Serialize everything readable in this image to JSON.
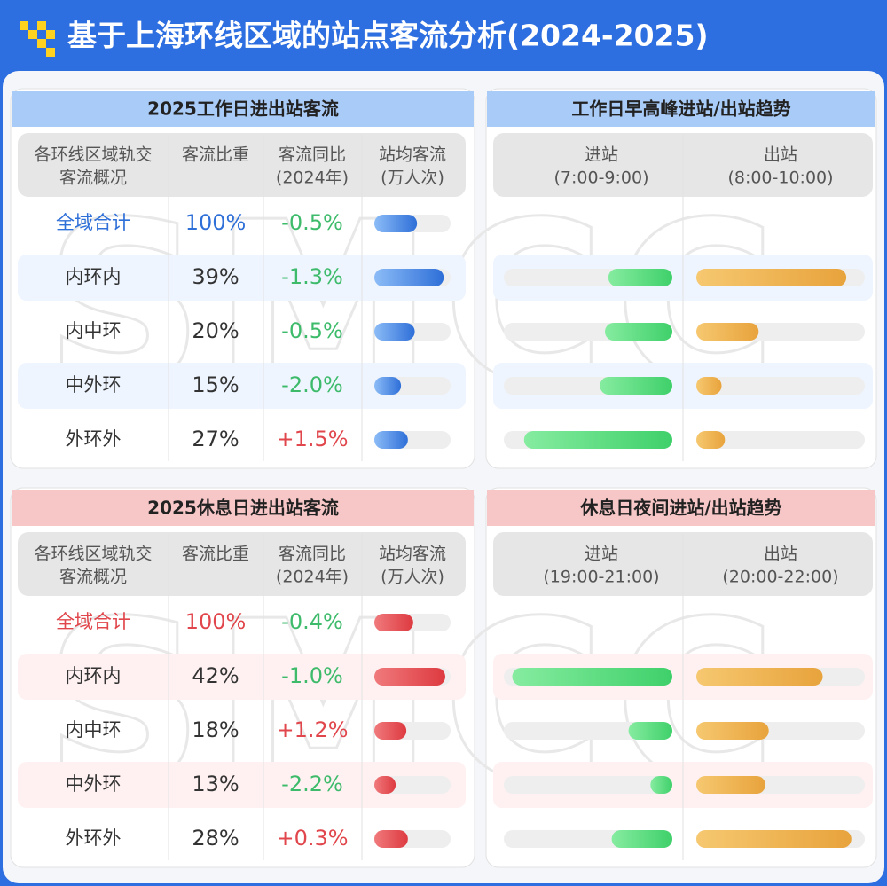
{
  "title": "基于上海环线区域的站点客流分析(2024-2025)",
  "watermark": "SMCC",
  "tables": [
    {
      "title": "2025工作日进出站客流",
      "theme": "blue",
      "headers": [
        [
          "各环线区域轨交",
          "客流概况"
        ],
        [
          "客流比重"
        ],
        [
          "客流同比",
          "(2024年)"
        ],
        [
          "站均客流",
          "(万人次)"
        ]
      ],
      "bar_range": [
        0,
        100
      ],
      "rows": [
        {
          "cells": [
            "全域合计",
            "100%",
            "-0.5%"
          ],
          "bar": 56
        },
        {
          "cells": [
            "内环内",
            "39%",
            "-1.3%"
          ],
          "bar": 91
        },
        {
          "cells": [
            "内中环",
            "20%",
            "-0.5%"
          ],
          "bar": 53
        },
        {
          "cells": [
            "中外环",
            "15%",
            "-2.0%"
          ],
          "bar": 35
        },
        {
          "cells": [
            "外环外",
            "27%",
            "+1.5%"
          ],
          "bar": 44
        }
      ]
    },
    {
      "title": "2025休息日进出站客流",
      "theme": "red",
      "headers": [
        [
          "各环线区域轨交",
          "客流概况"
        ],
        [
          "客流比重"
        ],
        [
          "客流同比",
          "(2024年)"
        ],
        [
          "站均客流",
          "(万人次)"
        ]
      ],
      "bar_range": [
        0,
        100
      ],
      "rows": [
        {
          "cells": [
            "全域合计",
            "100%",
            "-0.4%"
          ],
          "bar": 51
        },
        {
          "cells": [
            "内环内",
            "42%",
            "-1.0%"
          ],
          "bar": 93
        },
        {
          "cells": [
            "内中环",
            "18%",
            "+1.2%"
          ],
          "bar": 42
        },
        {
          "cells": [
            "中外环",
            "13%",
            "-2.2%"
          ],
          "bar": 28
        },
        {
          "cells": [
            "外环外",
            "28%",
            "+0.3%"
          ],
          "bar": 44
        }
      ]
    }
  ],
  "trends": [
    {
      "title": "工作日早高峰进站/出站趋势",
      "theme": "blue",
      "headers": [
        [
          "进站",
          "(7:00-9:00)"
        ],
        [
          "出站",
          "(8:00-10:00)"
        ]
      ],
      "bar_range": [
        0,
        100
      ],
      "in": [
        38,
        40,
        43,
        88
      ],
      "out": [
        89,
        37,
        15,
        17
      ]
    },
    {
      "title": "休息日夜间进站/出站趋势",
      "theme": "red",
      "headers": [
        [
          "进站",
          "(19:00-21:00)"
        ],
        [
          "出站",
          "(20:00-22:00)"
        ]
      ],
      "bar_range": [
        0,
        100
      ],
      "in": [
        95,
        26,
        13,
        36
      ],
      "out": [
        75,
        43,
        41,
        92
      ]
    }
  ]
}
